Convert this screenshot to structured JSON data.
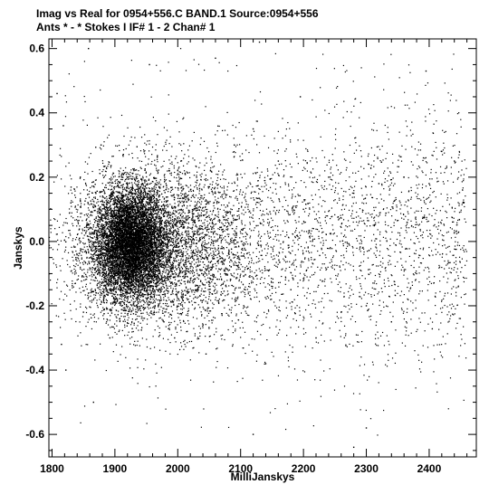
{
  "chart_data": {
    "type": "scatter",
    "title_lines": [
      "Imag vs Real for 0954+556.C BAND.1   Source:0954+556",
      "Ants * - *     Stokes I  IF# 1 - 2  Chan# 1"
    ],
    "xlabel": "MilliJanskys",
    "ylabel": "Janskys",
    "xlim": [
      1795,
      2475
    ],
    "ylim": [
      -0.67,
      0.63
    ],
    "x_ticks": [
      1800,
      1900,
      2000,
      2100,
      2200,
      2300,
      2400
    ],
    "x_tick_labels": [
      "1800",
      "1900",
      "2000",
      "2100",
      "2200",
      "2300",
      "2400"
    ],
    "y_ticks": [
      -0.6,
      -0.4,
      -0.2,
      0.0,
      0.2,
      0.4,
      0.6
    ],
    "y_tick_labels": [
      "-0.6",
      "-0.4",
      "-0.2",
      "0.0",
      "0.2",
      "0.4",
      "0.6"
    ],
    "grid": false,
    "marker_color": "#000000",
    "series": [
      {
        "points": [
          [
            1808,
            0.46
          ],
          [
            1818,
            0.36
          ],
          [
            1815,
            -0.32
          ],
          [
            1822,
            -0.4
          ],
          [
            1830,
            0.12
          ],
          [
            1838,
            -0.05
          ],
          [
            1845,
            0.2
          ],
          [
            1850,
            -0.22
          ],
          [
            1858,
            0.6
          ],
          [
            1866,
            -0.5
          ],
          [
            1872,
            0.05
          ],
          [
            1878,
            0.3
          ],
          [
            1882,
            -0.18
          ],
          [
            1888,
            0.1
          ],
          [
            1892,
            -0.3
          ],
          [
            1896,
            0.0
          ],
          [
            1900,
            0.08
          ],
          [
            1904,
            -0.08
          ],
          [
            1908,
            0.15
          ],
          [
            1912,
            -0.02
          ],
          [
            1916,
            0.04
          ],
          [
            1920,
            -0.06
          ],
          [
            1924,
            0.02
          ],
          [
            1928,
            -0.1
          ],
          [
            1932,
            0.07
          ],
          [
            1936,
            -0.04
          ],
          [
            1940,
            0.12
          ],
          [
            1944,
            -0.12
          ],
          [
            1948,
            0.03
          ],
          [
            1952,
            -0.15
          ],
          [
            1958,
            0.1
          ],
          [
            1964,
            -0.2
          ],
          [
            1970,
            0.18
          ],
          [
            1978,
            -0.25
          ],
          [
            1986,
            0.22
          ],
          [
            1995,
            -0.3
          ],
          [
            2005,
            0.25
          ],
          [
            2015,
            -0.28
          ],
          [
            2030,
            0.2
          ],
          [
            2045,
            -0.35
          ],
          [
            2060,
            0.15
          ],
          [
            2075,
            -0.1
          ],
          [
            2090,
            0.3
          ],
          [
            2105,
            -0.2
          ],
          [
            2120,
            0.35
          ],
          [
            2140,
            -0.38
          ],
          [
            2160,
            0.25
          ],
          [
            2180,
            -0.15
          ],
          [
            2200,
            0.1
          ],
          [
            2220,
            -0.3
          ],
          [
            2240,
            0.2
          ],
          [
            2260,
            -0.22
          ],
          [
            2280,
            0.15
          ],
          [
            2300,
            -0.2
          ],
          [
            2320,
            0.18
          ],
          [
            2340,
            -0.25
          ],
          [
            2360,
            0.2
          ],
          [
            2380,
            -0.1
          ],
          [
            2400,
            0.18
          ],
          [
            2420,
            0.28
          ],
          [
            2440,
            0.25
          ],
          [
            2455,
            0.12
          ],
          [
            1955,
            0.55
          ],
          [
            2060,
            0.57
          ],
          [
            2130,
            0.62
          ],
          [
            2120,
            -0.6
          ],
          [
            2280,
            -0.64
          ],
          [
            2395,
            0.53
          ],
          [
            2195,
            0.45
          ],
          [
            2300,
            -0.58
          ]
        ]
      }
    ]
  }
}
